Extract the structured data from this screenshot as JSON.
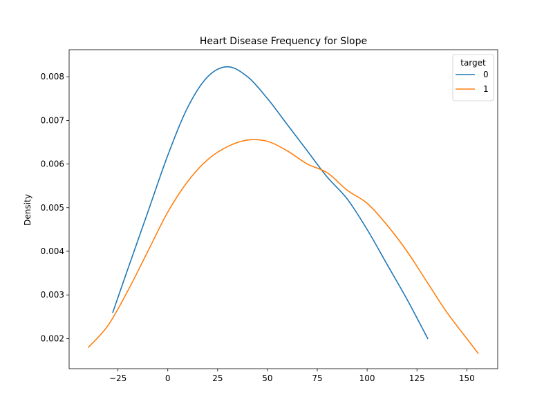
{
  "chart_data": {
    "type": "line",
    "title": "Heart Disease Frequency for Slope",
    "xlabel": "",
    "ylabel": "Density",
    "xlim": [
      -49.5,
      165.5
    ],
    "ylim": [
      0.00131,
      0.00862
    ],
    "x_ticks": [
      -25,
      0,
      25,
      50,
      75,
      100,
      125,
      150
    ],
    "x_tick_labels": [
      "−25",
      "0",
      "25",
      "50",
      "75",
      "100",
      "125",
      "150"
    ],
    "y_ticks": [
      0.002,
      0.003,
      0.004,
      0.005,
      0.006,
      0.007,
      0.008
    ],
    "y_tick_labels": [
      "0.002",
      "0.003",
      "0.004",
      "0.005",
      "0.006",
      "0.007",
      "0.008"
    ],
    "grid": false,
    "legend": {
      "title": "target",
      "placement": "top-right"
    },
    "series": [
      {
        "name": "0",
        "color": "#1f77b4",
        "x": [
          -27.6,
          -20,
          -10,
          0,
          10,
          20,
          30,
          40,
          50,
          60,
          70,
          80,
          90,
          100,
          110,
          120,
          130.4
        ],
        "y": [
          0.0026,
          0.0036,
          0.0049,
          0.0062,
          0.0073,
          0.008,
          0.00823,
          0.008,
          0.0075,
          0.0069,
          0.0063,
          0.0057,
          0.0052,
          0.0045,
          0.0037,
          0.0029,
          0.002
        ]
      },
      {
        "name": "1",
        "color": "#ff7f0e",
        "x": [
          -39.8,
          -30,
          -20,
          -10,
          0,
          10,
          20,
          30,
          40,
          50,
          60,
          70,
          80,
          90,
          100,
          110,
          120,
          130,
          140,
          150,
          155.7
        ],
        "y": [
          0.0018,
          0.0023,
          0.0031,
          0.004,
          0.0049,
          0.0056,
          0.0061,
          0.0064,
          0.00655,
          0.00652,
          0.0063,
          0.006,
          0.0058,
          0.0054,
          0.0051,
          0.0046,
          0.004,
          0.0033,
          0.0026,
          0.002,
          0.00166
        ]
      }
    ]
  }
}
